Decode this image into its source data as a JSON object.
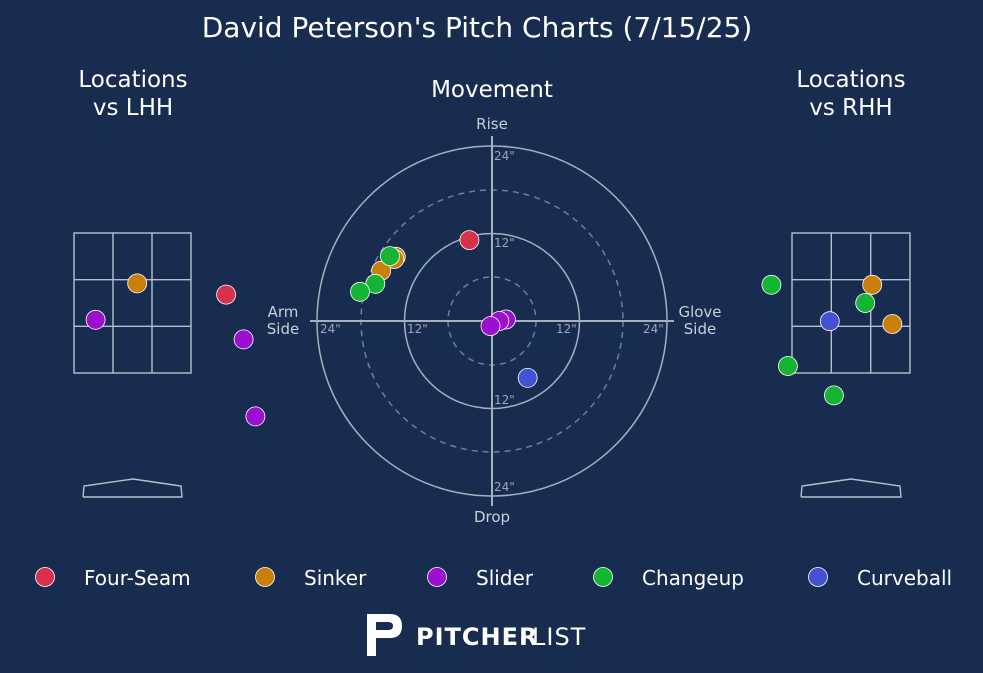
{
  "title": "David Peterson's Pitch Charts (7/15/25)",
  "brand": {
    "bold": "PITCHER",
    "light": "LIST"
  },
  "colors": {
    "background": "#172c4f",
    "Four-Seam": "#d7314d",
    "Sinker": "#c97f0a",
    "Slider": "#9a0fd0",
    "Changeup": "#13b532",
    "Curveball": "#4351d4"
  },
  "legend": [
    {
      "label": "Four-Seam",
      "color": "#d7314d"
    },
    {
      "label": "Sinker",
      "color": "#c97f0a"
    },
    {
      "label": "Slider",
      "color": "#9a0fd0"
    },
    {
      "label": "Changeup",
      "color": "#13b532"
    },
    {
      "label": "Curveball",
      "color": "#4351d4"
    }
  ],
  "chart_data": [
    {
      "type": "scatter",
      "title": "Locations\nvs LHH",
      "units": "zone-relative: x from -1 (left edge) to 1 (right edge) of strike zone, y from 0 (bottom) to 1 (top)",
      "points": [
        {
          "pitch": "Sinker",
          "x": 0.08,
          "y": 0.64
        },
        {
          "pitch": "Four-Seam",
          "x": 1.6,
          "y": 0.56
        },
        {
          "pitch": "Slider",
          "x": -0.63,
          "y": 0.38
        },
        {
          "pitch": "Slider",
          "x": 1.9,
          "y": 0.24
        },
        {
          "pitch": "Slider",
          "x": 2.1,
          "y": -0.31
        }
      ]
    },
    {
      "type": "scatter",
      "title": "Movement",
      "xlabel": "Arm\nSide",
      "xlabel_right": "Glove\nSide",
      "ylabel_top": "Rise",
      "ylabel_bottom": "Drop",
      "units": "inches of break",
      "ring_labels": [
        "24\"",
        "12\"",
        "12\"",
        "24\"",
        "24\"",
        "12\"",
        "12\"",
        "24\""
      ],
      "range": [
        -24,
        24
      ],
      "points": [
        {
          "pitch": "Four-Seam",
          "x": -3.1,
          "y": 11.1
        },
        {
          "pitch": "Sinker",
          "x": -13.2,
          "y": 8.8
        },
        {
          "pitch": "Sinker",
          "x": -13.4,
          "y": 8.5
        },
        {
          "pitch": "Sinker",
          "x": -15.2,
          "y": 6.9
        },
        {
          "pitch": "Changeup",
          "x": -14.0,
          "y": 8.9
        },
        {
          "pitch": "Changeup",
          "x": -16.0,
          "y": 5.1
        },
        {
          "pitch": "Changeup",
          "x": -18.1,
          "y": 4.0
        },
        {
          "pitch": "Slider",
          "x": 1.9,
          "y": 0.2
        },
        {
          "pitch": "Slider",
          "x": 1.0,
          "y": 0.0
        },
        {
          "pitch": "Slider",
          "x": -0.2,
          "y": -0.7
        },
        {
          "pitch": "Curveball",
          "x": 4.9,
          "y": -7.8
        }
      ]
    },
    {
      "type": "scatter",
      "title": "Locations\nvs RHH",
      "units": "zone-relative: x from -1 (left edge) to 1 (right edge) of strike zone, y from 0 (bottom) to 1 (top)",
      "points": [
        {
          "pitch": "Changeup",
          "x": -1.35,
          "y": 0.63
        },
        {
          "pitch": "Sinker",
          "x": 0.36,
          "y": 0.63
        },
        {
          "pitch": "Changeup",
          "x": 0.24,
          "y": 0.5
        },
        {
          "pitch": "Curveball",
          "x": -0.36,
          "y": 0.37
        },
        {
          "pitch": "Sinker",
          "x": 0.7,
          "y": 0.35
        },
        {
          "pitch": "Changeup",
          "x": -1.07,
          "y": 0.05
        },
        {
          "pitch": "Changeup",
          "x": -0.29,
          "y": -0.16
        }
      ]
    }
  ]
}
